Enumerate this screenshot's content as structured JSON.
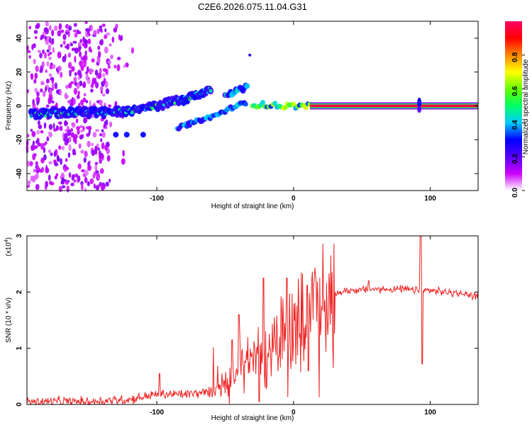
{
  "chart_data": [
    {
      "type": "heatmap",
      "title": "C2E6.2026.075.11.04.G31",
      "xlabel": "Height of straight line (km)",
      "ylabel": "Frequency (Hz)",
      "xlim": [
        -195,
        135
      ],
      "ylim": [
        -50,
        50
      ],
      "x_ticks": [
        -100,
        0,
        100
      ],
      "y_ticks": [
        -40,
        -20,
        0,
        20,
        40
      ],
      "colorbar": {
        "label": "Normalized spectral amplitude",
        "range": [
          0,
          1
        ],
        "ticks": [
          "0.0",
          "0.2",
          "0.4",
          "0.6",
          "0.8"
        ],
        "tick_values": [
          0.0,
          0.2,
          0.4,
          0.6,
          0.8
        ],
        "colors": [
          "#ffffff",
          "#cc00ff",
          "#5500ff",
          "#0000ff",
          "#00ccff",
          "#00ff66",
          "#66ff00",
          "#ffff00",
          "#ff8800",
          "#ff0000",
          "#ff0066"
        ]
      },
      "features": [
        {
          "name": "main-trace",
          "points": [
            [
              -192,
              -5
            ],
            [
              -170,
              -4
            ],
            [
              -140,
              -4
            ],
            [
              -120,
              -3
            ],
            [
              -100,
              0
            ],
            [
              -80,
              4
            ],
            [
              -60,
              10
            ]
          ]
        },
        {
          "name": "upper-branch",
          "points": [
            [
              -50,
              7
            ],
            [
              -40,
              9
            ],
            [
              -34,
              11
            ]
          ]
        },
        {
          "name": "lower-branch",
          "points": [
            [
              -85,
              -13
            ],
            [
              -70,
              -9
            ],
            [
              -55,
              -5
            ],
            [
              -45,
              -1
            ],
            [
              -35,
              2
            ]
          ]
        },
        {
          "name": "scatter-low",
          "points": [
            [
              -130,
              -17
            ],
            [
              -122,
              -17
            ],
            [
              -110,
              -17
            ]
          ]
        },
        {
          "name": "flat-line",
          "points": [
            [
              -30,
              1
            ],
            [
              -10,
              0
            ],
            [
              10,
              0
            ],
            [
              40,
              0
            ],
            [
              90,
              0
            ],
            [
              135,
              0
            ]
          ]
        },
        {
          "name": "spike",
          "points": [
            [
              92,
              0
            ]
          ]
        }
      ]
    },
    {
      "type": "line",
      "xlabel": "Height of straight line (km)",
      "ylabel": "SNR (10 * v/v)",
      "multiplier": "(x10",
      "multiplier_exp": "4",
      "multiplier_close": ")",
      "xlim": [
        -195,
        135
      ],
      "ylim": [
        0,
        3
      ],
      "x_ticks": [
        -100,
        0,
        100
      ],
      "y_ticks": [
        0,
        1,
        2,
        3
      ],
      "line_color": "#ee2222",
      "envelope": [
        [
          -195,
          0.05
        ],
        [
          -150,
          0.05
        ],
        [
          -120,
          0.09
        ],
        [
          -100,
          0.18
        ],
        [
          -80,
          0.18
        ],
        [
          -60,
          0.22
        ],
        [
          -50,
          0.35
        ],
        [
          -40,
          0.55
        ],
        [
          -30,
          0.8
        ],
        [
          -20,
          1.0
        ],
        [
          -10,
          1.2
        ],
        [
          0,
          1.4
        ],
        [
          10,
          1.65
        ],
        [
          20,
          1.85
        ],
        [
          30,
          1.97
        ],
        [
          40,
          2.03
        ],
        [
          60,
          2.05
        ],
        [
          80,
          2.05
        ],
        [
          90,
          2.03
        ],
        [
          100,
          2.03
        ],
        [
          110,
          2.0
        ],
        [
          120,
          1.98
        ],
        [
          135,
          1.93
        ]
      ],
      "peaks": [
        [
          -98,
          0.55
        ],
        [
          -45,
          1.15
        ],
        [
          -40,
          1.6
        ],
        [
          -22,
          2.25
        ],
        [
          -5,
          2.25
        ],
        [
          10,
          2.12
        ],
        [
          55,
          2.2
        ],
        [
          93,
          3.02
        ]
      ],
      "dips": [
        [
          -25,
          0.05
        ],
        [
          11,
          0.6
        ],
        [
          94,
          0.72
        ]
      ]
    }
  ]
}
